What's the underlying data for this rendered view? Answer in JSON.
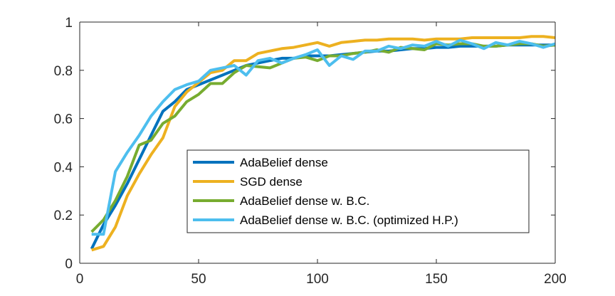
{
  "chart_data": {
    "type": "line",
    "title": "",
    "xlabel": "",
    "ylabel": "",
    "xlim": [
      0,
      200
    ],
    "ylim": [
      0,
      1
    ],
    "x_ticks": [
      0,
      50,
      100,
      150,
      200
    ],
    "y_ticks": [
      0,
      0.2,
      0.4,
      0.6,
      0.8,
      1
    ],
    "x_tick_labels": [
      "0",
      "50",
      "100",
      "150",
      "200"
    ],
    "y_tick_labels": [
      "0",
      "0.2",
      "0.4",
      "0.6",
      "0.8",
      "1"
    ],
    "grid": false,
    "legend_position": "center",
    "x": [
      5,
      10,
      15,
      20,
      25,
      30,
      35,
      40,
      45,
      50,
      55,
      60,
      65,
      70,
      75,
      80,
      85,
      90,
      95,
      100,
      105,
      110,
      115,
      120,
      125,
      130,
      135,
      140,
      145,
      150,
      155,
      160,
      165,
      170,
      175,
      180,
      185,
      190,
      195,
      200
    ],
    "series": [
      {
        "name": "AdaBelief dense",
        "color": "#0072bd",
        "values": [
          0.06,
          0.16,
          0.24,
          0.33,
          0.43,
          0.53,
          0.63,
          0.67,
          0.72,
          0.74,
          0.76,
          0.78,
          0.8,
          0.82,
          0.83,
          0.84,
          0.85,
          0.85,
          0.86,
          0.86,
          0.86,
          0.865,
          0.87,
          0.875,
          0.88,
          0.88,
          0.885,
          0.89,
          0.89,
          0.895,
          0.895,
          0.9,
          0.9,
          0.9,
          0.9,
          0.905,
          0.905,
          0.905,
          0.905,
          0.905
        ]
      },
      {
        "name": "SGD dense",
        "color": "#edb120",
        "values": [
          0.055,
          0.07,
          0.15,
          0.28,
          0.37,
          0.45,
          0.52,
          0.65,
          0.71,
          0.75,
          0.79,
          0.8,
          0.84,
          0.84,
          0.87,
          0.88,
          0.89,
          0.895,
          0.905,
          0.915,
          0.9,
          0.915,
          0.92,
          0.925,
          0.925,
          0.93,
          0.93,
          0.93,
          0.925,
          0.93,
          0.93,
          0.93,
          0.935,
          0.935,
          0.935,
          0.935,
          0.935,
          0.94,
          0.94,
          0.935
        ]
      },
      {
        "name": "AdaBelief dense w. B.C.",
        "color": "#77ac30",
        "values": [
          0.13,
          0.18,
          0.26,
          0.36,
          0.49,
          0.51,
          0.58,
          0.61,
          0.67,
          0.7,
          0.745,
          0.745,
          0.79,
          0.82,
          0.815,
          0.81,
          0.83,
          0.85,
          0.855,
          0.84,
          0.86,
          0.86,
          0.87,
          0.875,
          0.885,
          0.875,
          0.895,
          0.89,
          0.885,
          0.91,
          0.905,
          0.91,
          0.91,
          0.9,
          0.9,
          0.905,
          0.91,
          0.91,
          0.9,
          0.905
        ]
      },
      {
        "name": "AdaBelief dense w. B.C. (optimized H.P.)",
        "color": "#4dbeee",
        "values": [
          0.12,
          0.12,
          0.38,
          0.46,
          0.53,
          0.61,
          0.67,
          0.72,
          0.74,
          0.755,
          0.8,
          0.81,
          0.82,
          0.78,
          0.84,
          0.85,
          0.83,
          0.85,
          0.865,
          0.885,
          0.82,
          0.86,
          0.845,
          0.88,
          0.88,
          0.9,
          0.89,
          0.905,
          0.9,
          0.92,
          0.9,
          0.925,
          0.91,
          0.89,
          0.915,
          0.905,
          0.92,
          0.91,
          0.895,
          0.91
        ]
      }
    ]
  }
}
